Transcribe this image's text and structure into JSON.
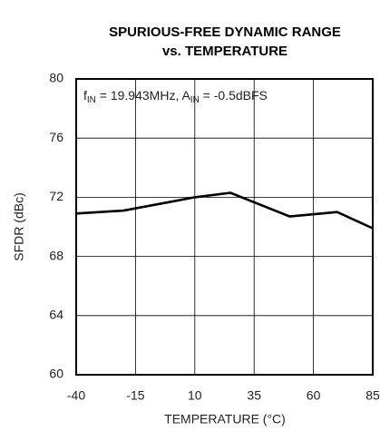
{
  "chart_data": {
    "type": "line",
    "title": [
      "SPURIOUS-FREE DYNAMIC RANGE",
      "vs. TEMPERATURE"
    ],
    "annotation": [
      "f",
      "IN",
      " = 19.943MHz, A",
      "IN",
      " = -0.5dBFS"
    ],
    "x_label": "TEMPERATURE (°C)",
    "y_label": "SFDR (dBc)",
    "x": [
      -40,
      -20,
      0,
      10,
      25,
      50,
      70,
      85
    ],
    "series": [
      {
        "name": "SFDR",
        "color": "#000000",
        "values": [
          70.9,
          71.1,
          71.7,
          72.0,
          72.3,
          70.7,
          71.0,
          69.9
        ]
      }
    ],
    "xlim": [
      -40,
      85
    ],
    "xticks": [
      -40,
      -15,
      10,
      35,
      60,
      85
    ],
    "ylim": [
      60,
      80
    ],
    "yticks": [
      60,
      64,
      68,
      72,
      76,
      80
    ],
    "grid": true
  }
}
